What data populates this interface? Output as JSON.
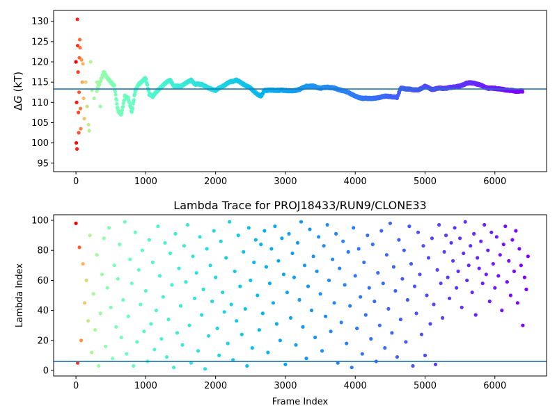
{
  "chart_data": [
    {
      "type": "scatter",
      "title": "",
      "xlabel": "",
      "ylabel_prefix": "Δ",
      "ylabel_var": "G",
      "ylabel_suffix": " (kT)",
      "xlim": [
        -320,
        6740
      ],
      "ylim": [
        92.9,
        132.7
      ],
      "xticks": [
        0,
        1000,
        2000,
        3000,
        4000,
        5000,
        6000
      ],
      "yticks": [
        95,
        100,
        105,
        110,
        115,
        120,
        125,
        130
      ],
      "hline": 113.3,
      "hline_color": "#1f77b4",
      "colormap": "rainbow (red at start → purple at end)",
      "early_points": [
        [
          0,
          120
        ],
        [
          5,
          100
        ],
        [
          10,
          110
        ],
        [
          15,
          98.5
        ],
        [
          20,
          130.5
        ],
        [
          25,
          124
        ],
        [
          30,
          117.5
        ],
        [
          35,
          107.5
        ],
        [
          40,
          102.5
        ],
        [
          45,
          112.5
        ],
        [
          50,
          121
        ],
        [
          55,
          125.5
        ],
        [
          60,
          123.5
        ],
        [
          65,
          108.5
        ],
        [
          70,
          103.5
        ],
        [
          80,
          120.5
        ],
        [
          90,
          115
        ],
        [
          100,
          119.5
        ],
        [
          110,
          111
        ],
        [
          120,
          106
        ],
        [
          140,
          115
        ],
        [
          160,
          109
        ],
        [
          180,
          104.5
        ],
        [
          190,
          103
        ],
        [
          210,
          120
        ],
        [
          230,
          113
        ],
        [
          260,
          111
        ],
        [
          300,
          115
        ],
        [
          350,
          109
        ]
      ],
      "trace": [
        [
          300,
          113
        ],
        [
          400,
          117.5
        ],
        [
          450,
          116
        ],
        [
          500,
          115
        ],
        [
          550,
          114
        ],
        [
          600,
          108
        ],
        [
          650,
          107
        ],
        [
          700,
          111.5
        ],
        [
          750,
          111
        ],
        [
          800,
          107.5
        ],
        [
          850,
          113
        ],
        [
          900,
          114.5
        ],
        [
          1000,
          116
        ],
        [
          1050,
          112
        ],
        [
          1100,
          111.5
        ],
        [
          1200,
          113.5
        ],
        [
          1300,
          115
        ],
        [
          1350,
          115.5
        ],
        [
          1400,
          114
        ],
        [
          1500,
          114
        ],
        [
          1600,
          115
        ],
        [
          1650,
          115.5
        ],
        [
          1700,
          114.5
        ],
        [
          1800,
          114.5
        ],
        [
          1900,
          113.5
        ],
        [
          2000,
          113
        ],
        [
          2100,
          114
        ],
        [
          2200,
          115
        ],
        [
          2300,
          115.5
        ],
        [
          2400,
          114.5
        ],
        [
          2500,
          113.5
        ],
        [
          2600,
          112
        ],
        [
          2650,
          111.5
        ],
        [
          2700,
          113
        ],
        [
          2800,
          113
        ],
        [
          2900,
          113
        ],
        [
          3000,
          113
        ],
        [
          3100,
          112.8
        ],
        [
          3200,
          113.2
        ],
        [
          3300,
          114
        ],
        [
          3400,
          114
        ],
        [
          3500,
          113.5
        ],
        [
          3600,
          113.8
        ],
        [
          3700,
          113.5
        ],
        [
          3800,
          113
        ],
        [
          3900,
          112.5
        ],
        [
          4000,
          111.5
        ],
        [
          4100,
          111
        ],
        [
          4200,
          111
        ],
        [
          4300,
          111
        ],
        [
          4400,
          111.5
        ],
        [
          4500,
          111.5
        ],
        [
          4600,
          111.2
        ],
        [
          4650,
          113.5
        ],
        [
          4800,
          113.2
        ],
        [
          4900,
          113
        ],
        [
          5000,
          114
        ],
        [
          5100,
          113.2
        ],
        [
          5200,
          113.5
        ],
        [
          5300,
          113.5
        ],
        [
          5400,
          113.8
        ],
        [
          5500,
          114
        ],
        [
          5600,
          114.8
        ],
        [
          5700,
          114.8
        ],
        [
          5800,
          114.2
        ],
        [
          5900,
          113.5
        ],
        [
          6000,
          113.5
        ],
        [
          6100,
          113.2
        ],
        [
          6200,
          113
        ],
        [
          6300,
          112.8
        ],
        [
          6400,
          112.8
        ]
      ]
    },
    {
      "type": "scatter",
      "title": "Lambda Trace for PROJ18433/RUN9/CLONE33",
      "xlabel": "Frame Index",
      "ylabel": "Lambda Index",
      "xlim": [
        -320,
        6740
      ],
      "ylim": [
        -3.7,
        103.7
      ],
      "xticks": [
        0,
        1000,
        2000,
        3000,
        4000,
        5000,
        6000
      ],
      "yticks": [
        0,
        20,
        40,
        60,
        80,
        100
      ],
      "hline": 6,
      "hline_color": "#1f77b4",
      "frame_step": 25,
      "lambda": [
        98,
        5,
        82,
        20,
        71,
        45,
        60,
        33,
        90,
        12,
        51,
        27,
        77,
        3,
        38,
        64,
        88,
        16,
        55,
        95,
        42,
        8,
        70,
        29,
        61,
        84,
        22,
        47,
        99,
        11,
        36,
        74,
        58,
        3,
        92,
        19,
        67,
        44,
        80,
        26,
        53,
        6,
        87,
        31,
        72,
        14,
        40,
        96,
        63,
        21,
        49,
        85,
        9,
        34,
        78,
        57,
        2,
        91,
        25,
        68,
        43,
        17,
        83,
        59,
        97,
        30,
        5,
        76,
        48,
        65,
        13,
        89,
        37,
        54,
        1,
        81,
        23,
        70,
        46,
        93,
        62,
        28,
        10,
        86,
        52,
        39,
        75,
        18,
        99,
        44,
        7,
        66,
        33,
        90,
        56,
        24,
        79,
        41,
        3,
        95,
        60,
        15,
        72,
        87,
        50,
        27,
        84,
        38,
        93,
        69,
        12,
        58,
        81,
        45,
        96,
        31,
        73,
        20,
        88,
        64,
        4,
        52,
        91,
        35,
        78,
        62,
        17,
        85,
        47,
        99,
        29,
        70,
        8,
        56,
        94,
        40,
        76,
        22,
        66,
        89,
        51,
        13,
        83,
        36,
        97,
        60,
        26,
        74,
        45,
        91,
        5,
        68,
        32,
        86,
        57,
        18,
        79,
        43,
        2,
        95,
        63,
        28,
        81,
        49,
        11,
        72,
        37,
        90,
        55,
        21,
        84,
        46,
        6,
        65,
        30,
        93,
        58,
        15,
        77,
        41,
        98,
        25,
        69,
        53,
        9,
        87,
        34,
        61,
        80,
        19,
        47,
        96,
        71,
        3,
        56,
        38,
        92,
        64,
        24,
        83,
        10,
        50,
        75,
        31,
        88,
        44,
        4,
        67,
        97,
        58,
        35,
        79,
        90,
        62,
        48,
        85,
        73,
        95,
        55,
        66,
        88,
        42,
        78,
        99,
        60,
        70,
        83,
        52,
        91,
        37,
        75,
        68,
        86,
        58,
        97,
        64,
        80,
        46,
        92,
        71,
        55,
        89,
        63,
        77,
        40,
        84,
        96,
        59,
        73,
        50,
        87,
        66,
        93,
        45,
        81,
        70,
        30,
        62,
        54,
        76
      ],
      "lambda_start_frame": 0
    }
  ]
}
